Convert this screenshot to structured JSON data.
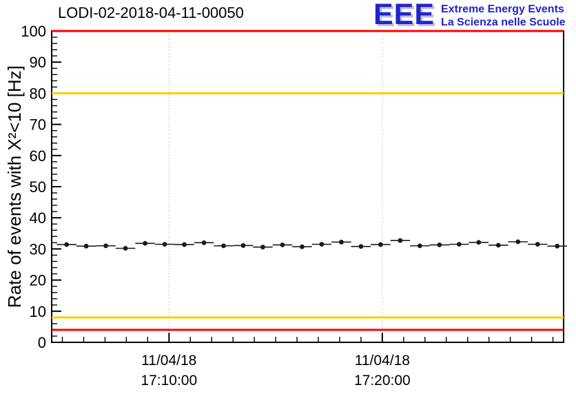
{
  "header": {
    "logo": {
      "acronym": "EEE",
      "tagline_line1": "Extreme Energy Events",
      "tagline_line2": "La Scienza nelle Scuole",
      "color": "#2323cc",
      "shadow_color": "#bcc0de"
    }
  },
  "chart_data": {
    "type": "scatter",
    "title": "LODI-02-2018-04-11-00050",
    "ylabel": "Rate of events with X²<10 [Hz]",
    "x_unit": "minutes after 17:00 on 11/04/18",
    "x_range": [
      4.5,
      28.5
    ],
    "y_range": [
      0,
      100
    ],
    "grid": "vertical-dotted-at-major-x-ticks",
    "legend": "none",
    "y_tick_labels": [
      0,
      10,
      20,
      30,
      40,
      50,
      60,
      70,
      80,
      90,
      100
    ],
    "y_minor_step": 2,
    "y_major_step": 10,
    "x_minor_step": 1,
    "x_major_ticks": [
      {
        "value": 10,
        "date": "11/04/18",
        "time": "17:10:00"
      },
      {
        "value": 20,
        "date": "11/04/18",
        "time": "17:20:00"
      }
    ],
    "reference_lines": [
      {
        "y": 100,
        "color": "#ff0000"
      },
      {
        "y": 80,
        "color": "#ffcc00"
      },
      {
        "y": 8,
        "color": "#ffcc00"
      },
      {
        "y": 4,
        "color": "#ff0000"
      }
    ],
    "series": [
      {
        "name": "event-rate",
        "marker_color": "#1a1a1a",
        "x_half_width": 0.46,
        "y_error": 0.7,
        "points": [
          {
            "t": 5.2,
            "v": 31.4
          },
          {
            "t": 6.12,
            "v": 30.9
          },
          {
            "t": 7.04,
            "v": 31.0
          },
          {
            "t": 7.96,
            "v": 30.2
          },
          {
            "t": 8.88,
            "v": 31.8
          },
          {
            "t": 9.8,
            "v": 31.5
          },
          {
            "t": 10.72,
            "v": 31.4
          },
          {
            "t": 11.64,
            "v": 32.0
          },
          {
            "t": 12.56,
            "v": 31.0
          },
          {
            "t": 13.48,
            "v": 31.1
          },
          {
            "t": 14.4,
            "v": 30.6
          },
          {
            "t": 15.32,
            "v": 31.3
          },
          {
            "t": 16.24,
            "v": 30.7
          },
          {
            "t": 17.16,
            "v": 31.5
          },
          {
            "t": 18.08,
            "v": 32.2
          },
          {
            "t": 19.0,
            "v": 30.8
          },
          {
            "t": 19.92,
            "v": 31.4
          },
          {
            "t": 20.84,
            "v": 32.7
          },
          {
            "t": 21.76,
            "v": 31.0
          },
          {
            "t": 22.68,
            "v": 31.3
          },
          {
            "t": 23.6,
            "v": 31.5
          },
          {
            "t": 24.52,
            "v": 32.1
          },
          {
            "t": 25.44,
            "v": 31.2
          },
          {
            "t": 26.36,
            "v": 32.3
          },
          {
            "t": 27.28,
            "v": 31.5
          },
          {
            "t": 28.2,
            "v": 30.9
          }
        ]
      }
    ]
  }
}
